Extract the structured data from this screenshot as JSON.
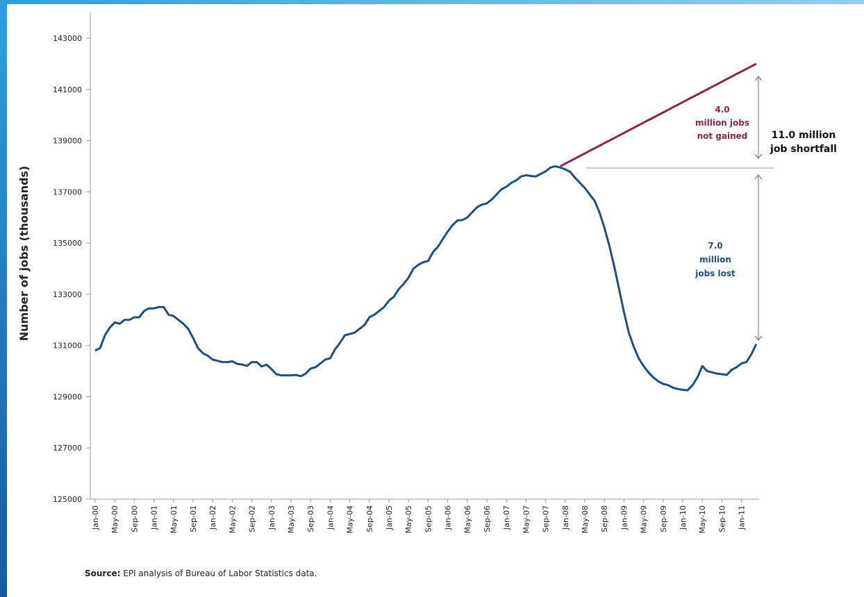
{
  "chart_data": {
    "type": "line",
    "y_label": "Number of jobs (thousands)",
    "source_label": "Source:",
    "source_text": " EPI analysis of Bureau of Labor Statistics data.",
    "annotations": [
      {
        "lines": [
          "4.0",
          "million jobs",
          "not gained"
        ],
        "color": "#8c2443"
      },
      {
        "lines": [
          "11.0 million",
          "job shortfall"
        ],
        "color": "#111111"
      },
      {
        "lines": [
          "7.0",
          "million",
          "jobs lost"
        ],
        "color": "#1f4e7f"
      }
    ],
    "categories": [
      "Jan-00",
      null,
      null,
      null,
      "May-00",
      null,
      null,
      null,
      "Sep-00",
      null,
      null,
      null,
      "Jan-01",
      null,
      null,
      null,
      "May-01",
      null,
      null,
      null,
      "Sep-01",
      null,
      null,
      null,
      "Jan-02",
      null,
      null,
      null,
      "May-02",
      null,
      null,
      null,
      "Sep-02",
      null,
      null,
      null,
      "Jan-03",
      null,
      null,
      null,
      "May-03",
      null,
      null,
      null,
      "Sep-03",
      null,
      null,
      null,
      "Jan-04",
      null,
      null,
      null,
      "May-04",
      null,
      null,
      null,
      "Sep-04",
      null,
      null,
      null,
      "Jan-05",
      null,
      null,
      null,
      "May-05",
      null,
      null,
      null,
      "Sep-05",
      null,
      null,
      null,
      "Jan-06",
      null,
      null,
      null,
      "May-06",
      null,
      null,
      null,
      "Sep-06",
      null,
      null,
      null,
      "Jan-07",
      null,
      null,
      null,
      "May-07",
      null,
      null,
      null,
      "Sep-07",
      null,
      null,
      null,
      "Jan-08",
      null,
      null,
      null,
      "May-08",
      null,
      null,
      null,
      "Sep-08",
      null,
      null,
      null,
      "Jan-09",
      null,
      null,
      null,
      "May-09",
      null,
      null,
      null,
      "Sep-09",
      null,
      null,
      null,
      "Jan-10",
      null,
      null,
      null,
      "May-10",
      null,
      null,
      null,
      "Sep-10",
      null,
      null,
      null,
      "Jan-11",
      null,
      null,
      null
    ],
    "series": [
      {
        "color": "#1d4e7f",
        "values": [
          130800,
          130900,
          131400,
          131700,
          131900,
          131850,
          132000,
          132000,
          132100,
          132100,
          132350,
          132450,
          132450,
          132500,
          132500,
          132200,
          132150,
          132000,
          131850,
          131650,
          131300,
          130900,
          130700,
          130600,
          130450,
          130400,
          130350,
          130350,
          130380,
          130280,
          130260,
          130200,
          130350,
          130350,
          130180,
          130250,
          130080,
          129880,
          129830,
          129830,
          129830,
          129850,
          129800,
          129900,
          130100,
          130150,
          130300,
          130450,
          130500,
          130850,
          131100,
          131400,
          131450,
          131500,
          131650,
          131800,
          132100,
          132200,
          132350,
          132500,
          132750,
          132900,
          133200,
          133400,
          133650,
          134000,
          134150,
          134250,
          134300,
          134650,
          134850,
          135150,
          135450,
          135700,
          135880,
          135900,
          136000,
          136200,
          136400,
          136500,
          136550,
          136700,
          136900,
          137100,
          137200,
          137350,
          137450,
          137600,
          137650,
          137620,
          137600,
          137700,
          137800,
          137950,
          138000,
          137950,
          137880,
          137780,
          137550,
          137350,
          137150,
          136900,
          136650,
          136200,
          135600,
          134900,
          134100,
          133200,
          132300,
          131500,
          130950,
          130500,
          130200,
          129950,
          129750,
          129600,
          129500,
          129450,
          129350,
          129300,
          129270,
          129250,
          129450,
          129750,
          130200,
          130000,
          129950,
          129900,
          129880,
          129850,
          130050,
          130150,
          130300,
          130350,
          130650,
          131050
        ]
      },
      {
        "color": "#8c2443",
        "values": [
          null,
          null,
          null,
          null,
          null,
          null,
          null,
          null,
          null,
          null,
          null,
          null,
          null,
          null,
          null,
          null,
          null,
          null,
          null,
          null,
          null,
          null,
          null,
          null,
          null,
          null,
          null,
          null,
          null,
          null,
          null,
          null,
          null,
          null,
          null,
          null,
          null,
          null,
          null,
          null,
          null,
          null,
          null,
          null,
          null,
          null,
          null,
          null,
          null,
          null,
          null,
          null,
          null,
          null,
          null,
          null,
          null,
          null,
          null,
          null,
          null,
          null,
          null,
          null,
          null,
          null,
          null,
          null,
          null,
          null,
          null,
          null,
          null,
          null,
          null,
          null,
          null,
          null,
          null,
          null,
          null,
          null,
          null,
          null,
          null,
          null,
          null,
          null,
          null,
          null,
          null,
          null,
          null,
          null,
          null,
          138000,
          138100,
          138200,
          138300,
          138400,
          138500,
          138600,
          138700,
          138800,
          138900,
          139000,
          139100,
          139200,
          139300,
          139400,
          139500,
          139600,
          139700,
          139800,
          139900,
          140000,
          140100,
          140200,
          140300,
          140400,
          140500,
          140600,
          140700,
          140800,
          140900,
          141000,
          141100,
          141200,
          141300,
          141400,
          141500,
          141600,
          141700,
          141800,
          141900,
          142000
        ]
      }
    ],
    "ylim": [
      125000,
      143000
    ],
    "yticks": [
      125000,
      127000,
      129000,
      131000,
      133000,
      135000,
      137000,
      139000,
      141000,
      143000
    ]
  }
}
